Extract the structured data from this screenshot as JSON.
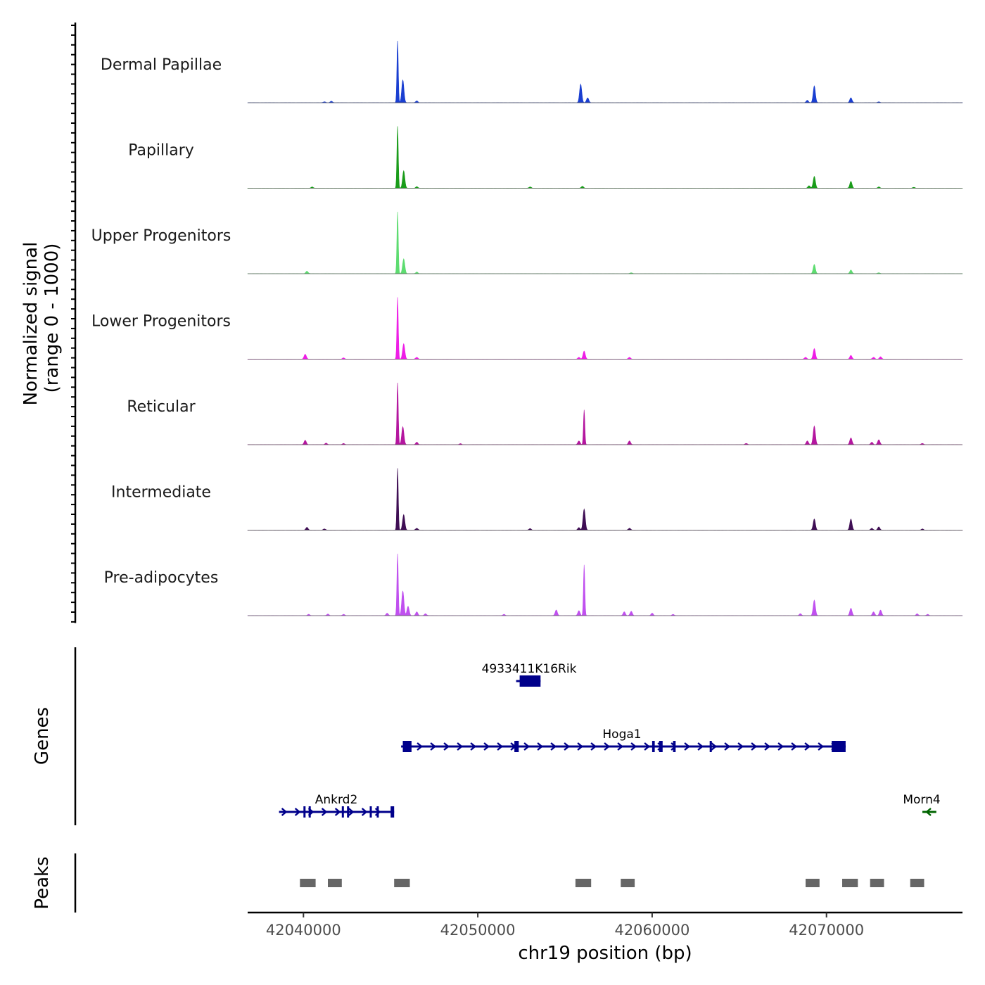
{
  "chart_data": {
    "type": "area",
    "chromosome": "chr19",
    "xlabel": "chr19 position (bp)",
    "xlim": [
      42036800,
      42077800
    ],
    "xticks": [
      42040000,
      42050000,
      42060000,
      42070000
    ],
    "xtick_labels": [
      "42040000",
      "42050000",
      "42060000",
      "42070000"
    ],
    "signal_ylabel_line1": "Normalized signal",
    "signal_ylabel_line2": "(range 0 - 1000)",
    "ylim": [
      0,
      1000
    ],
    "tracks": [
      {
        "name": "Dermal Papillae",
        "color": "#1a3fd1",
        "peaks": [
          [
            42041200,
            15
          ],
          [
            42041600,
            25
          ],
          [
            42045400,
            1000
          ],
          [
            42045700,
            370
          ],
          [
            42046500,
            30
          ],
          [
            42055900,
            300
          ],
          [
            42056300,
            80
          ],
          [
            42068900,
            40
          ],
          [
            42069300,
            270
          ],
          [
            42071400,
            80
          ],
          [
            42073000,
            15
          ]
        ]
      },
      {
        "name": "Papillary",
        "color": "#1a9c1a",
        "peaks": [
          [
            42040500,
            20
          ],
          [
            42045400,
            1000
          ],
          [
            42045750,
            280
          ],
          [
            42046500,
            25
          ],
          [
            42053000,
            20
          ],
          [
            42056000,
            30
          ],
          [
            42069000,
            40
          ],
          [
            42069300,
            190
          ],
          [
            42071400,
            110
          ],
          [
            42073000,
            20
          ],
          [
            42075000,
            15
          ]
        ]
      },
      {
        "name": "Upper Progenitors",
        "color": "#5ddc70",
        "peaks": [
          [
            42040200,
            40
          ],
          [
            42045400,
            1000
          ],
          [
            42045750,
            240
          ],
          [
            42046500,
            25
          ],
          [
            42058800,
            15
          ],
          [
            42069300,
            150
          ],
          [
            42071400,
            60
          ],
          [
            42073000,
            15
          ]
        ]
      },
      {
        "name": "Lower Progenitors",
        "color": "#ee1ee6",
        "peaks": [
          [
            42040100,
            80
          ],
          [
            42042300,
            20
          ],
          [
            42045400,
            1000
          ],
          [
            42045750,
            250
          ],
          [
            42046500,
            30
          ],
          [
            42055800,
            30
          ],
          [
            42056100,
            130
          ],
          [
            42058700,
            30
          ],
          [
            42068800,
            30
          ],
          [
            42069300,
            170
          ],
          [
            42071400,
            60
          ],
          [
            42072700,
            30
          ],
          [
            42073100,
            40
          ]
        ]
      },
      {
        "name": "Reticular",
        "color": "#b4169f",
        "peaks": [
          [
            42040100,
            70
          ],
          [
            42041300,
            25
          ],
          [
            42042300,
            20
          ],
          [
            42045400,
            1000
          ],
          [
            42045700,
            290
          ],
          [
            42046500,
            40
          ],
          [
            42049000,
            15
          ],
          [
            42055800,
            60
          ],
          [
            42056100,
            560
          ],
          [
            42058700,
            60
          ],
          [
            42065400,
            20
          ],
          [
            42068900,
            60
          ],
          [
            42069300,
            300
          ],
          [
            42071400,
            110
          ],
          [
            42072600,
            40
          ],
          [
            42073000,
            80
          ],
          [
            42075500,
            20
          ]
        ]
      },
      {
        "name": "Intermediate",
        "color": "#3f0e54",
        "peaks": [
          [
            42040200,
            45
          ],
          [
            42041200,
            20
          ],
          [
            42045400,
            1000
          ],
          [
            42045750,
            250
          ],
          [
            42046500,
            30
          ],
          [
            42053000,
            25
          ],
          [
            42055800,
            40
          ],
          [
            42056100,
            340
          ],
          [
            42058700,
            30
          ],
          [
            42069300,
            180
          ],
          [
            42071400,
            180
          ],
          [
            42072600,
            30
          ],
          [
            42073000,
            50
          ],
          [
            42075500,
            20
          ]
        ]
      },
      {
        "name": "Pre-adipocytes",
        "color": "#c050ef",
        "peaks": [
          [
            42040300,
            20
          ],
          [
            42041400,
            25
          ],
          [
            42042300,
            20
          ],
          [
            42044800,
            40
          ],
          [
            42045400,
            1000
          ],
          [
            42045700,
            400
          ],
          [
            42046000,
            150
          ],
          [
            42046500,
            60
          ],
          [
            42047000,
            30
          ],
          [
            42051500,
            20
          ],
          [
            42054500,
            90
          ],
          [
            42055800,
            80
          ],
          [
            42056100,
            820
          ],
          [
            42058400,
            60
          ],
          [
            42058800,
            70
          ],
          [
            42060000,
            40
          ],
          [
            42061200,
            20
          ],
          [
            42068500,
            30
          ],
          [
            42069300,
            250
          ],
          [
            42071400,
            120
          ],
          [
            42072700,
            60
          ],
          [
            42073100,
            90
          ],
          [
            42075200,
            30
          ],
          [
            42075800,
            20
          ]
        ]
      }
    ],
    "genes_ylabel": "Genes",
    "genes": [
      {
        "name": "4933411K16Rik",
        "strand": "-",
        "color": "#00008b",
        "start": 42052200,
        "end": 42053600,
        "exons": [
          [
            42052400,
            42053600
          ]
        ]
      },
      {
        "name": "Hoga1",
        "strand": "+",
        "color": "#00008b",
        "start": 42045600,
        "end": 42071100,
        "exons": [
          [
            42045700,
            42046200
          ],
          [
            42052100,
            42052350
          ],
          [
            42060000,
            42060150
          ],
          [
            42060400,
            42060600
          ],
          [
            42061200,
            42061350
          ],
          [
            42063300,
            42063400
          ],
          [
            42070300,
            42071100
          ]
        ]
      },
      {
        "name": "Ankrd2",
        "strand": "+",
        "color": "#00008b",
        "start": 42038600,
        "end": 42045200,
        "exons": [
          [
            42040000,
            42040100
          ],
          [
            42040300,
            42040400
          ],
          [
            42042200,
            42042300
          ],
          [
            42042500,
            42042600
          ],
          [
            42043800,
            42043900
          ],
          [
            42044200,
            42044250
          ],
          [
            42045000,
            42045200
          ]
        ]
      },
      {
        "name": "Morn4",
        "strand": "-",
        "color": "#006400",
        "start": 42075500,
        "end": 42076300,
        "exons": []
      }
    ],
    "peaks_ylabel": "Peaks",
    "peak_regions": [
      [
        42039800,
        42040700
      ],
      [
        42041400,
        42042200
      ],
      [
        42045200,
        42046100
      ],
      [
        42055600,
        42056500
      ],
      [
        42058200,
        42059000
      ],
      [
        42068800,
        42069600
      ],
      [
        42070900,
        42071800
      ],
      [
        42072500,
        42073300
      ],
      [
        42074800,
        42075600
      ]
    ]
  }
}
